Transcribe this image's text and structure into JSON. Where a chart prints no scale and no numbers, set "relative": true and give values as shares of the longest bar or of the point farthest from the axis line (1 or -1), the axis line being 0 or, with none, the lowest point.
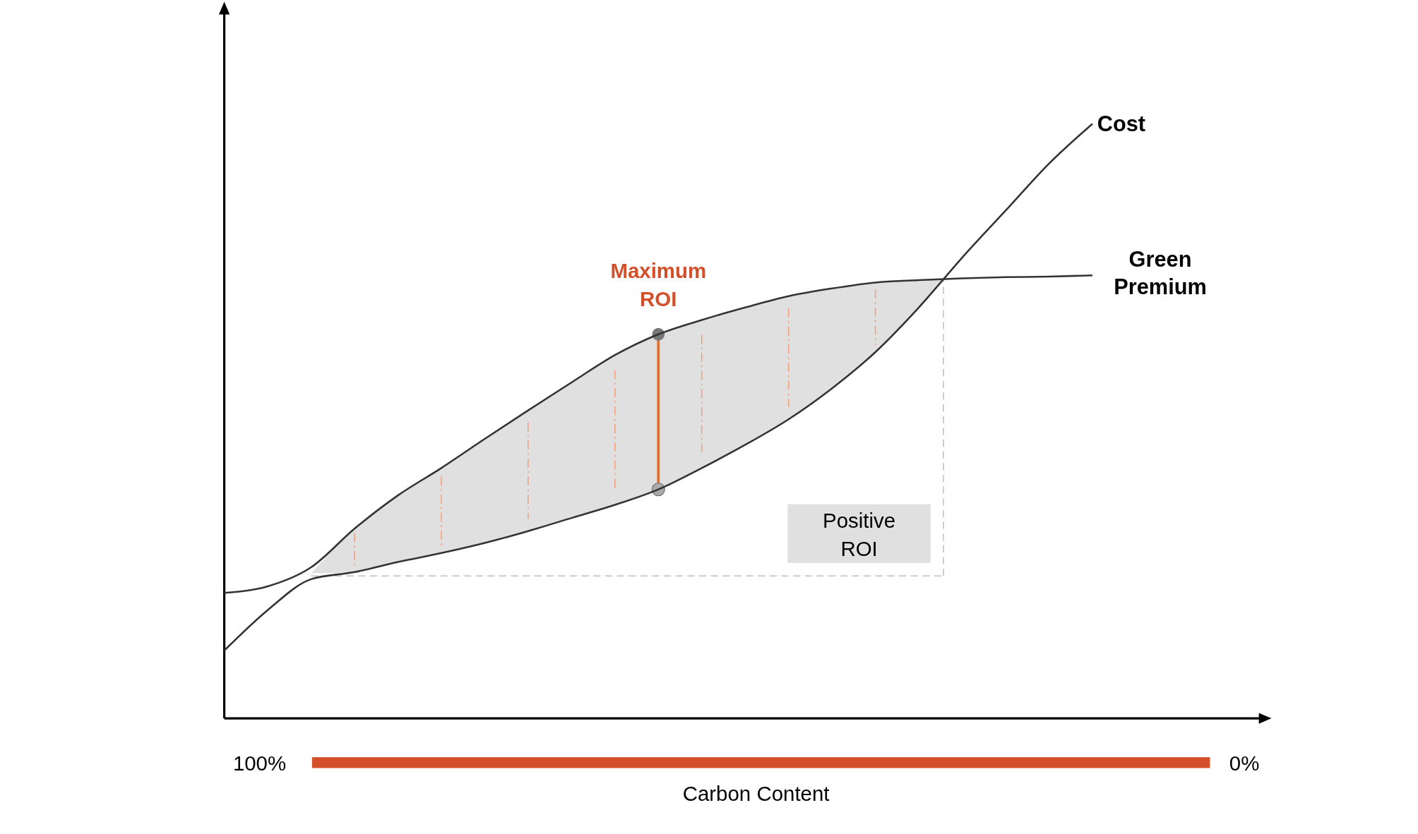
{
  "chart_data": {
    "type": "line",
    "relative": true,
    "categories": [
      null,
      null,
      null,
      null,
      null,
      null,
      null,
      null,
      null,
      null,
      null,
      null,
      null,
      null,
      null,
      null,
      null,
      null,
      null,
      null,
      null
    ],
    "series": [
      {
        "name": "Cost",
        "color": "#333333",
        "values": [
          0.114,
          0.182,
          0.234,
          0.246,
          0.263,
          0.278,
          0.295,
          0.315,
          0.337,
          0.359,
          0.385,
          0.421,
          0.46,
          0.503,
          0.555,
          0.616,
          0.691,
          0.775,
          0.854,
          0.933,
          1
        ]
      },
      {
        "name": "Green Premium",
        "color": "#333333",
        "values": [
          0.211,
          0.222,
          0.254,
          0.319,
          0.375,
          0.421,
          0.47,
          0.518,
          0.565,
          0.611,
          0.646,
          0.67,
          0.691,
          0.71,
          0.723,
          0.733,
          0.737,
          0.74,
          0.742,
          0.743,
          0.745
        ]
      }
    ],
    "xlabel": "Carbon Content",
    "annotations": [
      "Maximum ROI",
      "Positive ROI",
      "100%",
      "0%"
    ]
  }
}
